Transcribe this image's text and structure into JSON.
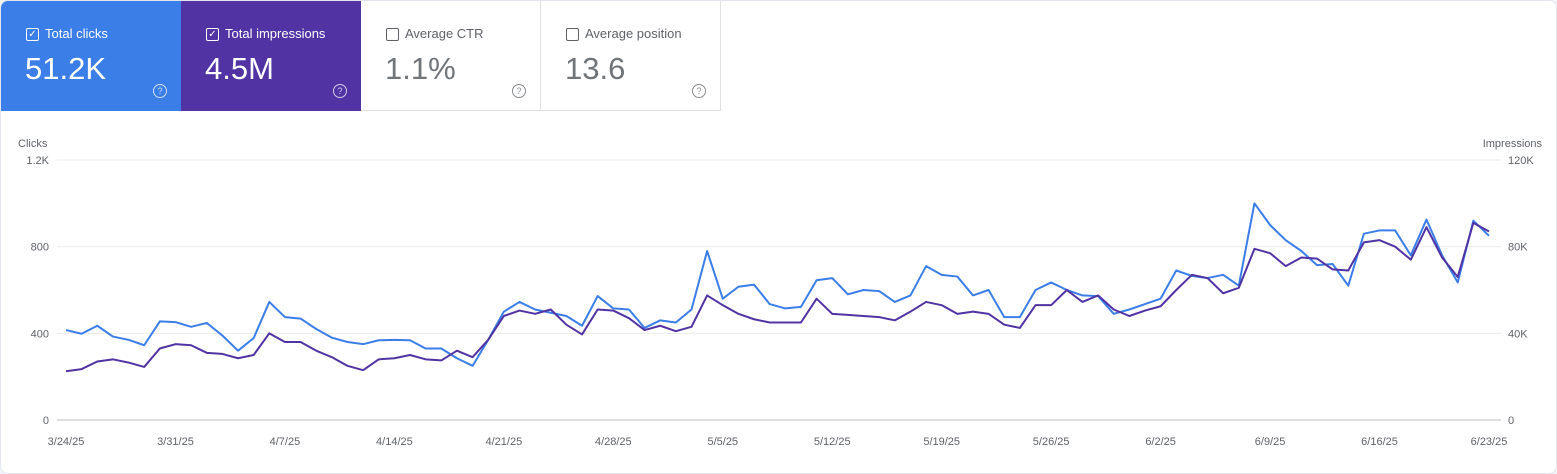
{
  "metrics": [
    {
      "label": "Total clicks",
      "value": "51.2K",
      "checked": true,
      "color": "#3b7ee8"
    },
    {
      "label": "Total impressions",
      "value": "4.5M",
      "checked": true,
      "color": "#5133a4"
    },
    {
      "label": "Average CTR",
      "value": "1.1%",
      "checked": false
    },
    {
      "label": "Average position",
      "value": "13.6",
      "checked": false
    }
  ],
  "help_icon": "question-circle-icon",
  "checkbox_checked_glyph": "✓",
  "help_glyph": "?",
  "chart_data": {
    "type": "line",
    "grid": true,
    "x_start": "3/24/25",
    "x_end": "6/23/25",
    "xtick_labels": [
      "3/24/25",
      "3/31/25",
      "4/7/25",
      "4/14/25",
      "4/21/25",
      "4/28/25",
      "5/5/25",
      "5/12/25",
      "5/19/25",
      "5/26/25",
      "6/2/25",
      "6/9/25",
      "6/16/25",
      "6/23/25"
    ],
    "left_axis": {
      "label": "Clicks",
      "ylim": [
        0,
        1200
      ],
      "tick_labels": [
        "0",
        "400",
        "800",
        "1.2K"
      ],
      "ticks": [
        0,
        400,
        800,
        1200
      ]
    },
    "right_axis": {
      "label": "Impressions",
      "ylim": [
        0,
        120000
      ],
      "tick_labels": [
        "0",
        "40K",
        "80K",
        "120K"
      ],
      "ticks": [
        0,
        40000,
        80000,
        120000
      ]
    },
    "series": [
      {
        "name": "Clicks",
        "axis": "left",
        "color": "#3b7ee8",
        "values": [
          415,
          398,
          435,
          385,
          370,
          345,
          455,
          452,
          430,
          448,
          390,
          320,
          378,
          545,
          475,
          468,
          420,
          380,
          360,
          350,
          368,
          370,
          368,
          330,
          330,
          285,
          250,
          370,
          500,
          545,
          510,
          495,
          480,
          435,
          572,
          515,
          510,
          425,
          460,
          450,
          510,
          780,
          560,
          615,
          625,
          535,
          515,
          522,
          645,
          655,
          580,
          600,
          595,
          545,
          575,
          710,
          670,
          662,
          575,
          600,
          475,
          475,
          600,
          635,
          600,
          575,
          572,
          490,
          510,
          535,
          560,
          690,
          665,
          655,
          670,
          620,
          1000,
          900,
          830,
          780,
          715,
          720,
          620,
          860,
          875,
          875,
          760,
          925,
          760,
          635,
          920,
          850
        ]
      },
      {
        "name": "Impressions",
        "axis": "right",
        "color": "#5133a4",
        "values": [
          22500,
          23500,
          27000,
          28000,
          26500,
          24500,
          33000,
          35000,
          34500,
          31000,
          30500,
          28500,
          30000,
          40000,
          36000,
          36000,
          32000,
          29000,
          25000,
          23000,
          28000,
          28500,
          30000,
          28000,
          27500,
          32000,
          29000,
          37000,
          48000,
          50500,
          49000,
          51000,
          44000,
          39500,
          51000,
          50500,
          47000,
          41500,
          43500,
          41000,
          43000,
          57500,
          53000,
          49000,
          46500,
          45000,
          45000,
          45000,
          56000,
          49000,
          48500,
          48000,
          47500,
          46000,
          50000,
          54500,
          53000,
          49000,
          50000,
          49000,
          44000,
          42500,
          53000,
          53000,
          60000,
          54500,
          57500,
          51000,
          48000,
          50500,
          52500,
          60000,
          67000,
          65500,
          58500,
          61000,
          79000,
          77000,
          71000,
          75000,
          74500,
          69500,
          69000,
          82000,
          83000,
          80000,
          74000,
          89000,
          75000,
          66000,
          91000,
          87000
        ]
      }
    ]
  }
}
